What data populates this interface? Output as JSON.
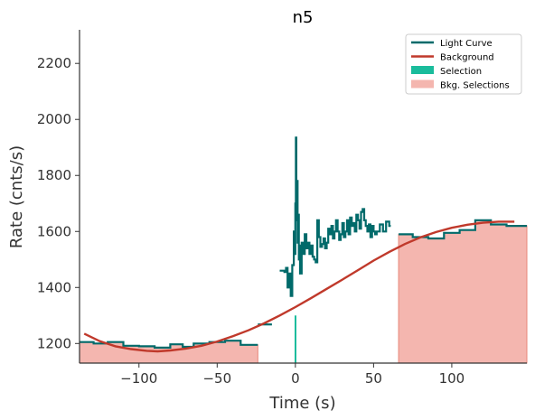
{
  "chart_data": {
    "type": "line",
    "title": "n5",
    "xlabel": "Time (s)",
    "ylabel": "Rate (cnts/s)",
    "xlim": [
      -138,
      148
    ],
    "ylim": [
      1130,
      2320
    ],
    "xticks": [
      -100,
      -50,
      0,
      50,
      100
    ],
    "xtick_labels": [
      "−100",
      "−50",
      "0",
      "50",
      "100"
    ],
    "yticks": [
      1200,
      1400,
      1600,
      1800,
      2000,
      2200
    ],
    "ytick_labels": [
      "1200",
      "1400",
      "1600",
      "1800",
      "2000",
      "2200"
    ],
    "grid": false,
    "legend_position": "top-right",
    "colors": {
      "light_curve": "#006a6a",
      "background": "#c0392b",
      "selection": "#1abc9c",
      "bkg_selection_fill": "#f4b6af",
      "bkg_selection_edge": "#e8877a"
    },
    "legend": [
      {
        "label": "Light Curve",
        "kind": "line",
        "color": "#006a6a"
      },
      {
        "label": "Background",
        "kind": "line",
        "color": "#c0392b"
      },
      {
        "label": "Selection",
        "kind": "patch",
        "color": "#1abc9c"
      },
      {
        "label": "Bkg. Selections",
        "kind": "patch",
        "color": "#f4b6af"
      }
    ],
    "series": [
      {
        "name": "Light Curve",
        "style": "step",
        "segments": [
          [
            [
              -138,
              1205
            ],
            [
              -129,
              1205
            ],
            [
              -129,
              1200
            ],
            [
              -120,
              1200
            ],
            [
              -120,
              1205
            ],
            [
              -110,
              1205
            ],
            [
              -110,
              1192
            ],
            [
              -100,
              1192
            ],
            [
              -100,
              1190
            ],
            [
              -90,
              1190
            ],
            [
              -90,
              1185
            ],
            [
              -80,
              1185
            ],
            [
              -80,
              1197
            ],
            [
              -72,
              1197
            ],
            [
              -72,
              1188
            ],
            [
              -65,
              1188
            ],
            [
              -65,
              1200
            ],
            [
              -55,
              1200
            ],
            [
              -55,
              1205
            ],
            [
              -45,
              1205
            ],
            [
              -45,
              1210
            ],
            [
              -35,
              1210
            ],
            [
              -35,
              1195
            ],
            [
              -24,
              1195
            ]
          ],
          [
            [
              -24,
              1268
            ],
            [
              -15,
              1268
            ]
          ],
          [
            [
              -10,
              1460
            ],
            [
              -7,
              1460
            ],
            [
              -7,
              1455
            ],
            [
              -6,
              1455
            ],
            [
              -6,
              1470
            ],
            [
              -5,
              1470
            ],
            [
              -5,
              1400
            ],
            [
              -4,
              1400
            ],
            [
              -4,
              1450
            ],
            [
              -3,
              1450
            ],
            [
              -3,
              1370
            ],
            [
              -2,
              1370
            ],
            [
              -2,
              1480
            ],
            [
              -1,
              1480
            ],
            [
              -1,
              1600
            ],
            [
              -0.5,
              1600
            ],
            [
              -0.5,
              1520
            ],
            [
              0,
              1520
            ],
            [
              0,
              1700
            ],
            [
              0.3,
              1700
            ],
            [
              0.3,
              1935
            ],
            [
              0.6,
              1935
            ],
            [
              0.6,
              1640
            ],
            [
              1,
              1640
            ],
            [
              1,
              1780
            ],
            [
              1.4,
              1780
            ],
            [
              1.4,
              1560
            ],
            [
              1.8,
              1560
            ],
            [
              1.8,
              1660
            ],
            [
              2.2,
              1660
            ],
            [
              2.2,
              1500
            ],
            [
              2.6,
              1500
            ],
            [
              2.6,
              1550
            ],
            [
              3,
              1550
            ],
            [
              3,
              1450
            ],
            [
              4,
              1450
            ],
            [
              4,
              1560
            ],
            [
              5,
              1560
            ],
            [
              5,
              1520
            ],
            [
              6,
              1520
            ],
            [
              6,
              1590
            ],
            [
              7,
              1590
            ],
            [
              7,
              1540
            ],
            [
              8,
              1540
            ],
            [
              8,
              1560
            ],
            [
              9,
              1560
            ],
            [
              9,
              1520
            ],
            [
              10,
              1520
            ],
            [
              10,
              1550
            ],
            [
              11,
              1550
            ],
            [
              11,
              1510
            ],
            [
              12,
              1510
            ],
            [
              12,
              1500
            ],
            [
              13,
              1500
            ],
            [
              13,
              1490
            ],
            [
              14,
              1490
            ],
            [
              14,
              1640
            ],
            [
              15,
              1640
            ],
            [
              15,
              1580
            ],
            [
              16,
              1580
            ],
            [
              16,
              1545
            ],
            [
              17,
              1545
            ],
            [
              17,
              1555
            ],
            [
              18,
              1555
            ],
            [
              18,
              1575
            ],
            [
              19,
              1575
            ],
            [
              19,
              1540
            ],
            [
              20,
              1540
            ],
            [
              20,
              1560
            ],
            [
              21,
              1560
            ],
            [
              21,
              1610
            ],
            [
              22,
              1610
            ],
            [
              22,
              1590
            ],
            [
              23,
              1590
            ],
            [
              23,
              1620
            ],
            [
              24,
              1620
            ],
            [
              24,
              1575
            ],
            [
              25,
              1575
            ],
            [
              25,
              1600
            ],
            [
              26,
              1600
            ],
            [
              26,
              1640
            ],
            [
              27,
              1640
            ],
            [
              27,
              1600
            ],
            [
              28,
              1600
            ],
            [
              28,
              1570
            ],
            [
              29,
              1570
            ],
            [
              29,
              1590
            ],
            [
              30,
              1590
            ],
            [
              30,
              1630
            ],
            [
              31,
              1630
            ],
            [
              31,
              1580
            ],
            [
              32,
              1580
            ],
            [
              32,
              1600
            ],
            [
              33,
              1600
            ],
            [
              33,
              1640
            ],
            [
              34,
              1640
            ],
            [
              34,
              1590
            ],
            [
              35,
              1590
            ],
            [
              35,
              1650
            ],
            [
              36,
              1650
            ],
            [
              36,
              1620
            ],
            [
              37,
              1620
            ],
            [
              37,
              1630
            ],
            [
              38,
              1630
            ],
            [
              38,
              1600
            ],
            [
              39,
              1600
            ],
            [
              39,
              1660
            ],
            [
              40,
              1660
            ],
            [
              40,
              1640
            ],
            [
              41,
              1640
            ],
            [
              41,
              1610
            ],
            [
              42,
              1610
            ],
            [
              42,
              1670
            ],
            [
              43,
              1670
            ],
            [
              43,
              1680
            ],
            [
              44,
              1680
            ],
            [
              44,
              1640
            ],
            [
              45,
              1640
            ],
            [
              45,
              1620
            ],
            [
              46,
              1620
            ],
            [
              46,
              1600
            ],
            [
              47,
              1600
            ],
            [
              47,
              1625
            ],
            [
              48,
              1625
            ],
            [
              48,
              1580
            ],
            [
              49,
              1580
            ],
            [
              49,
              1620
            ],
            [
              50,
              1620
            ],
            [
              50,
              1600
            ],
            [
              51,
              1600
            ],
            [
              51,
              1590
            ],
            [
              52,
              1590
            ],
            [
              52,
              1600
            ],
            [
              54,
              1600
            ],
            [
              54,
              1625
            ],
            [
              56,
              1625
            ],
            [
              56,
              1600
            ],
            [
              58,
              1600
            ],
            [
              58,
              1635
            ],
            [
              60,
              1635
            ],
            [
              60,
              1620
            ],
            [
              61,
              1620
            ]
          ],
          [
            [
              66,
              1590
            ],
            [
              75,
              1590
            ],
            [
              75,
              1580
            ],
            [
              85,
              1580
            ],
            [
              85,
              1575
            ],
            [
              95,
              1575
            ],
            [
              95,
              1595
            ],
            [
              105,
              1595
            ],
            [
              105,
              1605
            ],
            [
              115,
              1605
            ],
            [
              115,
              1640
            ],
            [
              125,
              1640
            ],
            [
              125,
              1625
            ],
            [
              135,
              1625
            ],
            [
              135,
              1620
            ],
            [
              148,
              1620
            ]
          ]
        ]
      },
      {
        "name": "Background",
        "x": [
          -135,
          -125,
          -115,
          -105,
          -95,
          -88,
          -80,
          -70,
          -60,
          -50,
          -40,
          -30,
          -20,
          -10,
          0,
          10,
          20,
          30,
          40,
          50,
          60,
          70,
          80,
          90,
          100,
          110,
          120,
          130,
          140
        ],
        "values": [
          1235,
          1208,
          1190,
          1180,
          1174,
          1172,
          1175,
          1182,
          1192,
          1207,
          1226,
          1247,
          1272,
          1300,
          1330,
          1362,
          1395,
          1428,
          1462,
          1496,
          1527,
          1555,
          1579,
          1598,
          1613,
          1624,
          1631,
          1635,
          1635
        ]
      }
    ],
    "selection": {
      "x": [
        -0.5,
        0.5
      ]
    },
    "bkg_selections": [
      {
        "x": [
          -138,
          -24
        ],
        "top": [
          1205,
          1205,
          1200,
          1200,
          1205,
          1205,
          1192,
          1192,
          1190,
          1190,
          1185,
          1185,
          1197,
          1197,
          1188,
          1188,
          1200,
          1200,
          1205,
          1205,
          1210,
          1210,
          1195,
          1195
        ]
      },
      {
        "x": [
          66,
          148
        ],
        "top": [
          1590,
          1590,
          1580,
          1580,
          1575,
          1575,
          1595,
          1595,
          1605,
          1605,
          1640,
          1640,
          1625,
          1625,
          1620,
          1620
        ]
      }
    ]
  }
}
